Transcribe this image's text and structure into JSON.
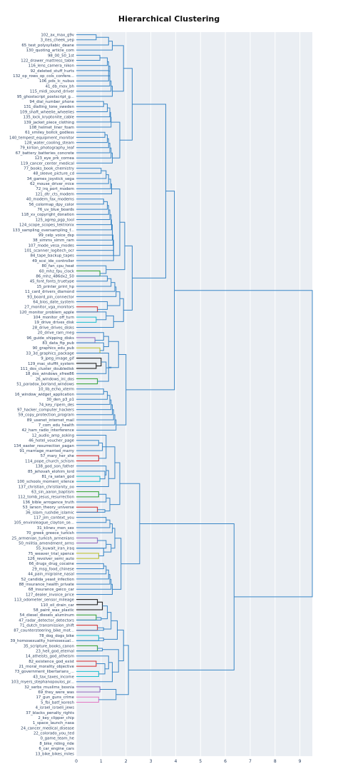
{
  "chart_data": {
    "type": "dendrogram",
    "title": "Hierarchical Clustering",
    "xlabel": "",
    "ylabel": "",
    "x_range": [
      0,
      9.5
    ],
    "x_ticks": [
      0,
      1,
      2,
      3,
      4,
      5,
      6,
      7,
      8,
      9
    ],
    "grid": true,
    "leaves": [
      "102_ax_max_g9v",
      "3_ites_cheek_yep",
      "65_test_polysyllabic_deane",
      "130_quoting_article_com",
      "98_00_50_1st",
      "122_drawer_mattress_table",
      "116_lens_camera_nikon",
      "92_deleted_stuff_hurts",
      "132_op_rows_op_cols_confere...",
      "106_pds_lc_nubus",
      "41_db_mov_bh",
      "115_midi_sound_driver",
      "95_ghostscript_postscript_g...",
      "94_dial_number_phone",
      "131_dialling_tone_sweden",
      "109_shaft_wheelie_wheelies",
      "135_lock_kryptonite_cable",
      "139_jacket_piece_clothing",
      "108_helmet_liner_foam",
      "61_smiley_bollck_godless",
      "140_tempest_equipment_monitor",
      "128_water_cooling_steam",
      "79_kirlian_photography_leaf",
      "67_battery_batteries_concrete",
      "123_eye_prk_cornea",
      "119_cancer_center_medical",
      "77_books_book_chemistry",
      "48_sleeve_picture_cd",
      "34_games_joystick_sega",
      "62_mouse_driver_mice",
      "72_irq_port_modem",
      "121_dtr_cts_modem",
      "40_modem_fax_modems",
      "56_colormap_dpy_color",
      "76_uv_blue_boards",
      "118_xv_copyright_donation",
      "125_agrep_pgp_tool",
      "124_scope_scopes_tektronix",
      "133_sampling_oversampling_f...",
      "99_celp_voice_dsp",
      "38_simms_simm_ram",
      "107_mode_vesa_modes",
      "101_scanner_logitech_ocr",
      "84_tape_backup_tapes",
      "49_scsi_ide_controller",
      "80_fan_cpu_heat",
      "60_mhz_fpu_clock",
      "86_mhz_486dx2_50",
      "45_font_fonts_truetype",
      "15_printer_print_hp",
      "11_card_drivers_diamond",
      "93_board_pin_connector",
      "64_bios_date_system",
      "27_monitor_vga_monitors",
      "120_monitor_problem_apple",
      "104_monitor_off_turn",
      "19_drive_drives_disk",
      "28_drive_drives_disks",
      "20_drive_ram_meg",
      "96_guide_shipping_disks",
      "83_data_ftp_pub",
      "90_graphics_edu_pub",
      "33_3d_graphics_package",
      "9_jpeg_image_gif",
      "129_mac_stuffit_system",
      "111_dos_cluster_doubledisk",
      "18_dos_windows_xfree86",
      "26_windows_ini_dos",
      "51_paradox_borland_windows",
      "10_lib_echo_xterm",
      "16_window_widget_application",
      "30_den_p3_p1",
      "74_key_ripem_des",
      "97_hacker_computer_hackers",
      "59_copy_protection_program",
      "89_usenet_internet_mail",
      "7_com_edu_health",
      "42_ham_radio_interference",
      "12_audio_amp_asking",
      "46_hotel_voucher_page",
      "134_easter_resurrection_pagan",
      "91_marriage_married_marry",
      "57_mary_her_she",
      "114_pope_church_schism",
      "138_god_son_father",
      "85_jehovah_elohim_lord",
      "81_ra_satan_god",
      "100_schools_moment_silence",
      "137_christian_christianity_oo",
      "63_sin_aaron_baptism",
      "112_tomb_jesus_resurrection",
      "136_bible_arrogance_truth",
      "53_larson_theory_universe",
      "36_islam_rushdie_islamic",
      "117_jim_context_you",
      "105_enviroleague_clayton_se...",
      "31_klinev_men_sex",
      "70_greek_greece_turkish",
      "25_armenian_turkish_armenians",
      "50_militia_amendment_arms",
      "55_kuwait_iran_iraq",
      "75_weaver_trial_spence",
      "126_revolver_semi_auto",
      "66_drugs_drug_cocaine",
      "29_msg_food_chinese",
      "44_pain_migraine_nasal",
      "52_candida_yeast_infection",
      "88_insurance_health_private",
      "68_insurance_geico_car",
      "127_dealer_invoice_price",
      "113_odometer_sensor_mileage",
      "110_oil_drain_car",
      "58_paint_wax_plastic",
      "54_diesel_diesels_aluminum",
      "47_radar_detector_detectors",
      "71_dutch_transmission_shift",
      "87_countersteering_bike_mot...",
      "78_dog_dogs_bike",
      "39_homosexuality_homosexual...",
      "35_scripture_books_canon",
      "23_hell_god_eternal",
      "14_atheists_god_atheism",
      "82_existence_god_exist",
      "21_moral_morality_objective",
      "73_government_libertarians_...",
      "43_tax_taxes_income",
      "103_myers_stephanopoulos_pr...",
      "32_serbs_muslims_bosnia",
      "69_they_were_was",
      "17_gun_guns_crime",
      "5_fbi_batf_koresh",
      "4_israel_israeli_jews",
      "37_blacks_penalty_rights",
      "2_key_clipper_chip",
      "1_space_launch_nasa",
      "24_cancer_medical_disease",
      "22_colorado_you_ted",
      "0_game_team_he",
      "8_bike_riding_ride",
      "6_car_engine_cars",
      "13_bike_bikes_miles"
    ],
    "colors": {
      "main": "#3a87c7",
      "accents": [
        "#2ca02c",
        "#d62728",
        "#17becf",
        "#9467bd",
        "#bcbd22",
        "#111111",
        "#e377c2"
      ],
      "plot_bg": "#eaeef3",
      "grid": "#ffffff"
    }
  }
}
